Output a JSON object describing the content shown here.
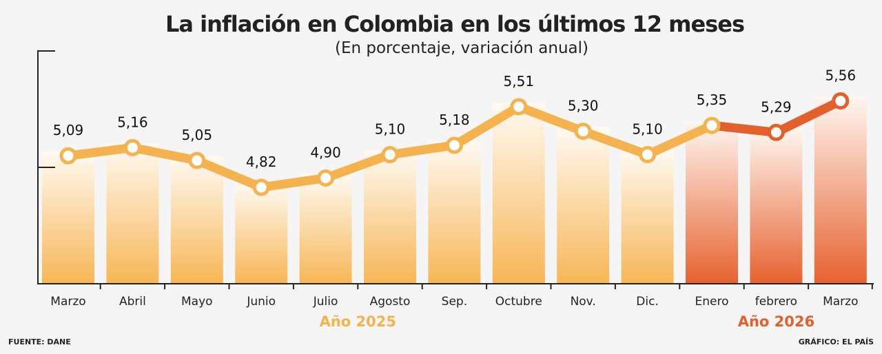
{
  "chart_data": {
    "type": "bar+line",
    "title": "La inflación en Colombia en los últimos 12 meses",
    "subtitle": "(En porcentaje, variación anual)",
    "categories": [
      "Marzo",
      "Abril",
      "Mayo",
      "Junio",
      "Julio",
      "Agosto",
      "Sep.",
      "Octubre",
      "Nov.",
      "Dic.",
      "Enero",
      "febrero",
      "Marzo"
    ],
    "values": [
      5.09,
      5.16,
      5.05,
      4.82,
      4.9,
      5.1,
      5.18,
      5.51,
      5.3,
      5.1,
      5.35,
      5.29,
      5.56
    ],
    "labels": [
      "5,09",
      "5,16",
      "5,05",
      "4,82",
      "4,90",
      "5,10",
      "5,18",
      "5,51",
      "5,30",
      "5,10",
      "5,35",
      "5,29",
      "5,56"
    ],
    "year_groups": [
      {
        "label": "Año 2025",
        "from": 0,
        "to": 9,
        "color": "#f5b350"
      },
      {
        "label": "Año 2026",
        "from": 10,
        "to": 12,
        "color": "#e35f2c"
      }
    ],
    "grid": false
  },
  "footer": {
    "source": "FUENTE:  DANE",
    "credit": "GRÁFICO: EL PAÍS"
  }
}
